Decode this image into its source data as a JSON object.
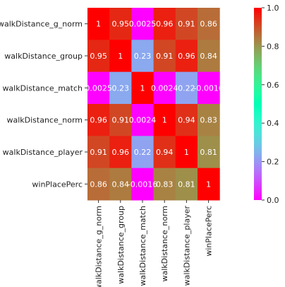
{
  "chart_data": {
    "type": "heatmap",
    "title": "",
    "xlabel": "",
    "ylabel": "",
    "rows": [
      "walkDistance_g_norm",
      "walkDistance_group",
      "walkDistance_match",
      "walkDistance_norm",
      "walkDistance_player",
      "winPlacePerc"
    ],
    "columns": [
      "walkDistance_g_norm",
      "walkDistance_group",
      "walkDistance_match",
      "walkDistance_norm",
      "walkDistance_player",
      "winPlacePerc"
    ],
    "values": [
      [
        1,
        0.95,
        0.0025,
        0.96,
        0.91,
        0.86
      ],
      [
        0.95,
        1,
        0.23,
        0.91,
        0.96,
        0.84
      ],
      [
        0.0025,
        0.23,
        1,
        0.0024,
        0.22,
        -0.0016
      ],
      [
        0.96,
        0.91,
        0.0024,
        1,
        0.94,
        0.83
      ],
      [
        0.91,
        0.96,
        0.22,
        0.94,
        1,
        0.81
      ],
      [
        0.86,
        0.84,
        -0.0016,
        0.83,
        0.81,
        1
      ]
    ],
    "value_labels": [
      [
        "1",
        "0.95",
        "0.0025",
        "0.96",
        "0.91",
        "0.86"
      ],
      [
        "0.95",
        "1",
        "0.23",
        "0.91",
        "0.96",
        "0.84"
      ],
      [
        "0.0025",
        "0.23",
        "1",
        "0.0024",
        "0.22",
        "-0.0016"
      ],
      [
        "0.96",
        "0.91",
        "0.0024",
        "1",
        "0.94",
        "0.83"
      ],
      [
        "0.91",
        "0.96",
        "0.22",
        "0.94",
        "1",
        "0.81"
      ],
      [
        "0.86",
        "0.84",
        "-0.0016",
        "0.83",
        "0.81",
        "1"
      ]
    ],
    "colormap": "rainbow",
    "vmin": 0,
    "vmax": 1,
    "colorbar_ticks": [
      "0.0",
      "0.2",
      "0.4",
      "0.6",
      "0.8",
      "1.0"
    ],
    "colorbar_position": "right"
  }
}
